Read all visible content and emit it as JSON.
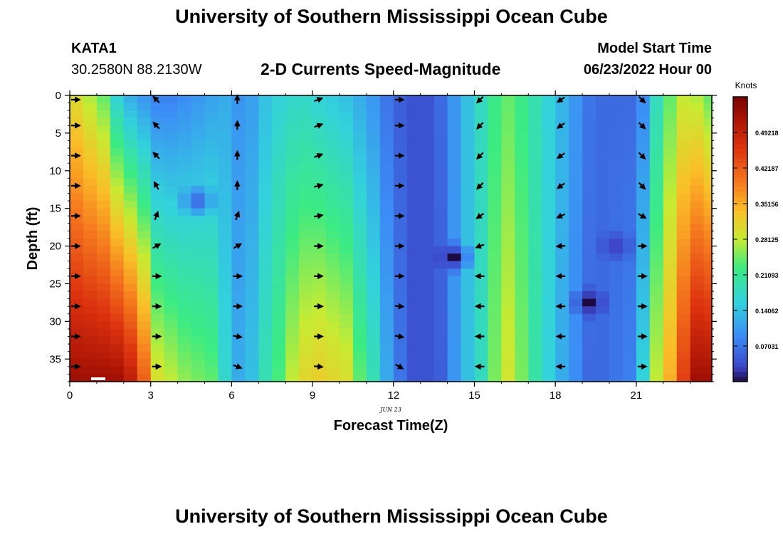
{
  "header": {
    "title": "University of Southern Mississippi Ocean Cube",
    "station": "KATA1",
    "coords": "30.2580N  88.2130W",
    "subtitle": "2-D Currents Speed-Magnitude",
    "model_start_label": "Model Start Time",
    "model_start_value": "06/23/2022 Hour 00"
  },
  "footer": {
    "title": "University of Southern Mississippi Ocean Cube"
  },
  "chart_data": {
    "type": "heatmap",
    "title": "2-D Currents Speed-Magnitude",
    "xlabel": "Forecast Time(Z)",
    "ylabel": "Depth (ft)",
    "date_label": "JUN 23",
    "xlim": [
      0,
      23.8
    ],
    "ylim": [
      0,
      38
    ],
    "x_ticks": [
      0,
      3,
      6,
      9,
      12,
      15,
      18,
      21
    ],
    "y_ticks": [
      0,
      5,
      10,
      15,
      20,
      25,
      30,
      35
    ],
    "colorbar": {
      "label": "Knots",
      "range": [
        0,
        0.5625
      ],
      "tick_labels": [
        "0.49218",
        "0.42187",
        "0.35156",
        "0.28125",
        "0.21093",
        "0.14062",
        "0.07031"
      ],
      "tick_values": [
        0.49218,
        0.42187,
        0.35156,
        0.28125,
        0.21093,
        0.14062,
        0.07031
      ]
    },
    "columns": [
      {
        "t": 0.0,
        "top": 0.3,
        "bot": 0.53
      },
      {
        "t": 0.5,
        "top": 0.27,
        "bot": 0.53
      },
      {
        "t": 1.0,
        "top": 0.24,
        "bot": 0.53
      },
      {
        "t": 1.5,
        "top": 0.16,
        "bot": 0.53
      },
      {
        "t": 2.0,
        "top": 0.12,
        "bot": 0.5
      },
      {
        "t": 2.5,
        "top": 0.1,
        "bot": 0.42
      },
      {
        "t": 3.0,
        "top": 0.08,
        "bot": 0.3
      },
      {
        "t": 3.5,
        "top": 0.08,
        "bot": 0.28
      },
      {
        "t": 4.0,
        "top": 0.09,
        "bot": 0.26
      },
      {
        "t": 4.5,
        "top": 0.1,
        "bot": 0.25
      },
      {
        "t": 5.0,
        "top": 0.11,
        "bot": 0.24
      },
      {
        "t": 5.5,
        "top": 0.12,
        "bot": 0.17
      },
      {
        "t": 6.0,
        "top": 0.1,
        "bot": 0.12
      },
      {
        "t": 6.5,
        "top": 0.11,
        "bot": 0.14
      },
      {
        "t": 7.0,
        "top": 0.14,
        "bot": 0.19
      },
      {
        "t": 7.5,
        "top": 0.16,
        "bot": 0.23
      },
      {
        "t": 8.0,
        "top": 0.17,
        "bot": 0.28
      },
      {
        "t": 8.5,
        "top": 0.17,
        "bot": 0.31
      },
      {
        "t": 9.0,
        "top": 0.16,
        "bot": 0.32
      },
      {
        "t": 9.5,
        "top": 0.15,
        "bot": 0.31
      },
      {
        "t": 10.0,
        "top": 0.14,
        "bot": 0.3
      },
      {
        "t": 10.5,
        "top": 0.12,
        "bot": 0.24
      },
      {
        "t": 11.0,
        "top": 0.1,
        "bot": 0.19
      },
      {
        "t": 11.5,
        "top": 0.07,
        "bot": 0.12
      },
      {
        "t": 12.0,
        "top": 0.05,
        "bot": 0.07
      },
      {
        "t": 12.5,
        "top": 0.04,
        "bot": 0.04
      },
      {
        "t": 13.0,
        "top": 0.04,
        "bot": 0.04
      },
      {
        "t": 13.5,
        "top": 0.06,
        "bot": 0.05
      },
      {
        "t": 14.0,
        "top": 0.1,
        "bot": 0.1
      },
      {
        "t": 14.5,
        "top": 0.14,
        "bot": 0.14
      },
      {
        "t": 15.0,
        "top": 0.18,
        "bot": 0.18
      },
      {
        "t": 15.5,
        "top": 0.22,
        "bot": 0.25
      },
      {
        "t": 16.0,
        "top": 0.24,
        "bot": 0.29
      },
      {
        "t": 16.5,
        "top": 0.22,
        "bot": 0.25
      },
      {
        "t": 17.0,
        "top": 0.19,
        "bot": 0.2
      },
      {
        "t": 17.5,
        "top": 0.16,
        "bot": 0.16
      },
      {
        "t": 18.0,
        "top": 0.13,
        "bot": 0.12
      },
      {
        "t": 18.5,
        "top": 0.1,
        "bot": 0.09
      },
      {
        "t": 19.0,
        "top": 0.07,
        "bot": 0.06
      },
      {
        "t": 19.5,
        "top": 0.06,
        "bot": 0.06
      },
      {
        "t": 20.0,
        "top": 0.06,
        "bot": 0.07
      },
      {
        "t": 20.5,
        "top": 0.06,
        "bot": 0.08
      },
      {
        "t": 21.0,
        "top": 0.09,
        "bot": 0.16
      },
      {
        "t": 21.5,
        "top": 0.18,
        "bot": 0.28
      },
      {
        "t": 22.0,
        "top": 0.24,
        "bot": 0.35
      },
      {
        "t": 22.5,
        "top": 0.28,
        "bot": 0.45
      },
      {
        "t": 23.0,
        "top": 0.27,
        "bot": 0.53
      },
      {
        "t": 23.5,
        "top": 0.24,
        "bot": 0.53
      }
    ],
    "anomalies": [
      {
        "t": 14.0,
        "depth": 21.5,
        "value": 0.0
      },
      {
        "t": 19.0,
        "depth": 27.5,
        "value": 0.0
      },
      {
        "t": 20.0,
        "depth": 20.0,
        "value": 0.02
      },
      {
        "t": 4.5,
        "depth": 14.0,
        "value": 0.05
      }
    ],
    "arrow_times": [
      0,
      3,
      6,
      9,
      12,
      15,
      18,
      21
    ],
    "arrow_depths": [
      0,
      4,
      8,
      12,
      16,
      20,
      24,
      28,
      32,
      36
    ],
    "arrow_directions_deg": [
      [
        90,
        90,
        90,
        90,
        90,
        90,
        90,
        90,
        90,
        90
      ],
      [
        -45,
        -45,
        -45,
        -30,
        20,
        60,
        90,
        90,
        90,
        90
      ],
      [
        0,
        0,
        0,
        0,
        20,
        60,
        90,
        90,
        100,
        110
      ],
      [
        70,
        70,
        70,
        75,
        80,
        90,
        90,
        90,
        90,
        95
      ],
      [
        90,
        90,
        90,
        90,
        90,
        90,
        90,
        95,
        100,
        120
      ],
      [
        225,
        225,
        225,
        225,
        235,
        250,
        270,
        270,
        270,
        270
      ],
      [
        235,
        235,
        235,
        235,
        245,
        265,
        270,
        270,
        270,
        270
      ],
      [
        135,
        135,
        135,
        135,
        120,
        90,
        90,
        90,
        90,
        90
      ]
    ]
  }
}
